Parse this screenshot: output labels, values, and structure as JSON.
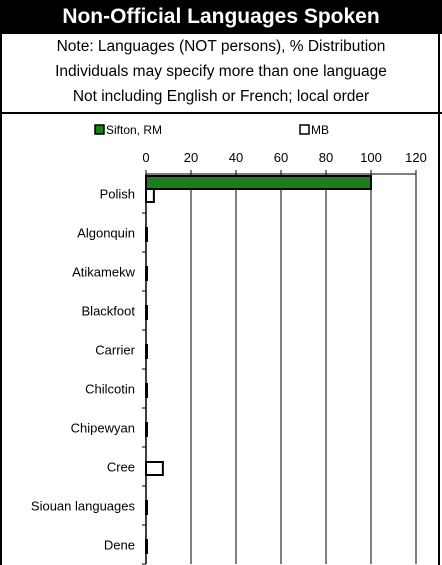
{
  "title": "Non-Official Languages Spoken",
  "notes": [
    "Note: Languages (NOT persons), % Distribution",
    "Individuals may specify more than one language",
    "Not including English or French; local order"
  ],
  "chart_data": {
    "type": "bar",
    "orientation": "horizontal",
    "categories": [
      "Polish",
      "Algonquin",
      "Atikamekw",
      "Blackfoot",
      "Carrier",
      "Chilcotin",
      "Chipewyan",
      "Cree",
      "Siouan languages",
      "Dene"
    ],
    "series": [
      {
        "name": "Sifton, RM",
        "color": "#1a7f1a",
        "values": [
          100,
          0,
          0,
          0,
          0,
          0,
          0,
          0,
          0,
          0
        ]
      },
      {
        "name": "MB",
        "color": "#ffffff",
        "values": [
          3.5,
          0.1,
          0.1,
          0.1,
          0.1,
          0.1,
          0.1,
          7.5,
          0.3,
          0.4
        ]
      }
    ],
    "xlim": [
      0,
      120
    ],
    "xticks": [
      0,
      20,
      40,
      60,
      80,
      100,
      120
    ],
    "grid": true,
    "legend_position": "top"
  }
}
